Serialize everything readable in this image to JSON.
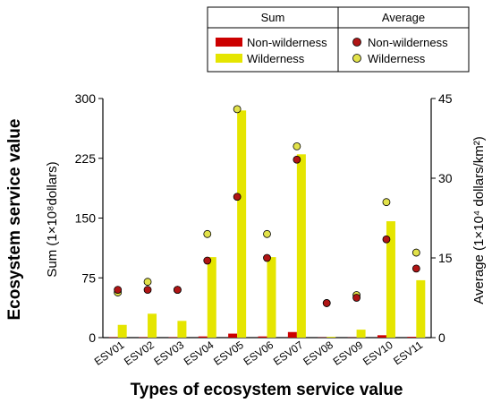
{
  "chart_data": {
    "type": "bar",
    "categories": [
      "ESV01",
      "ESV02",
      "ESV03",
      "ESV04",
      "ESV05",
      "ESV06",
      "ESV07",
      "ESV08",
      "ESV09",
      "ESV10",
      "ESV11"
    ],
    "xlabel": "Types of ecosystem service value",
    "outer_ylabel": "Ecosystem service value",
    "ylabel_left": "Sum (1×10⁸dollars)",
    "ylabel_right": "Average (1×10⁴ dollars/km²)",
    "ylim_left": [
      0,
      300
    ],
    "yticks_left": [
      "0",
      "75",
      "150",
      "225",
      "300"
    ],
    "ylim_right": [
      0,
      45
    ],
    "yticks_right": [
      "0",
      "15",
      "30",
      "45"
    ],
    "grid": false,
    "legend": {
      "sum_header": "Sum",
      "avg_header": "Average",
      "position": "top"
    },
    "bar_series": [
      {
        "name": "Non-wilderness",
        "color": "#cc0000",
        "values": [
          0.5,
          0.5,
          0.5,
          1.5,
          5,
          1.5,
          7,
          0.3,
          0.3,
          3,
          1
        ]
      },
      {
        "name": "Wilderness",
        "color": "#e5e500",
        "values": [
          16,
          30,
          21,
          101,
          285,
          101,
          230,
          1,
          10,
          146,
          72
        ]
      }
    ],
    "point_series": [
      {
        "name": "Non-wilderness",
        "color": "#b01515",
        "values": [
          9,
          9,
          9,
          14.5,
          26.5,
          15,
          33.5,
          6.5,
          7.5,
          18.5,
          13
        ]
      },
      {
        "name": "Wilderness",
        "color": "#e2e24a",
        "values": [
          8.5,
          10.5,
          9,
          19.5,
          43,
          19.5,
          36,
          6.5,
          8,
          25.5,
          16
        ]
      }
    ]
  }
}
